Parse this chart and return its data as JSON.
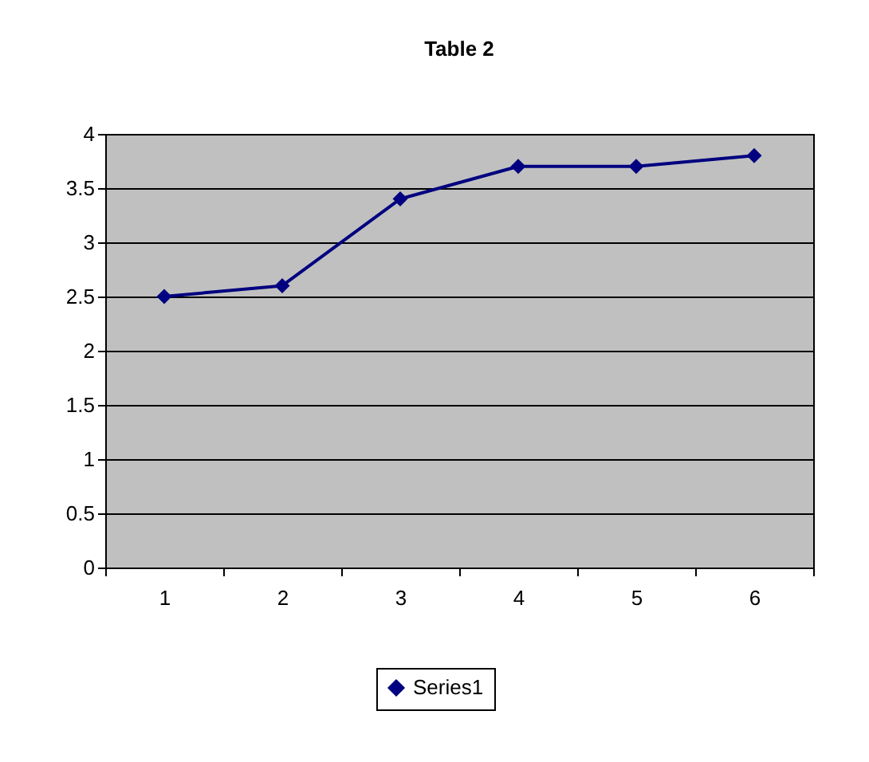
{
  "chart_data": {
    "type": "line",
    "title": "Table 2",
    "categories": [
      "1",
      "2",
      "3",
      "4",
      "5",
      "6"
    ],
    "series": [
      {
        "name": "Series1",
        "color": "#000080",
        "values": [
          2.5,
          2.6,
          3.4,
          3.7,
          3.7,
          3.8
        ]
      }
    ],
    "ylim": [
      0,
      4
    ],
    "yticks": [
      0,
      0.5,
      1,
      1.5,
      2,
      2.5,
      3,
      3.5,
      4
    ],
    "grid": "y",
    "legend": "bottom",
    "marker": "diamond",
    "line_style": "solid"
  }
}
